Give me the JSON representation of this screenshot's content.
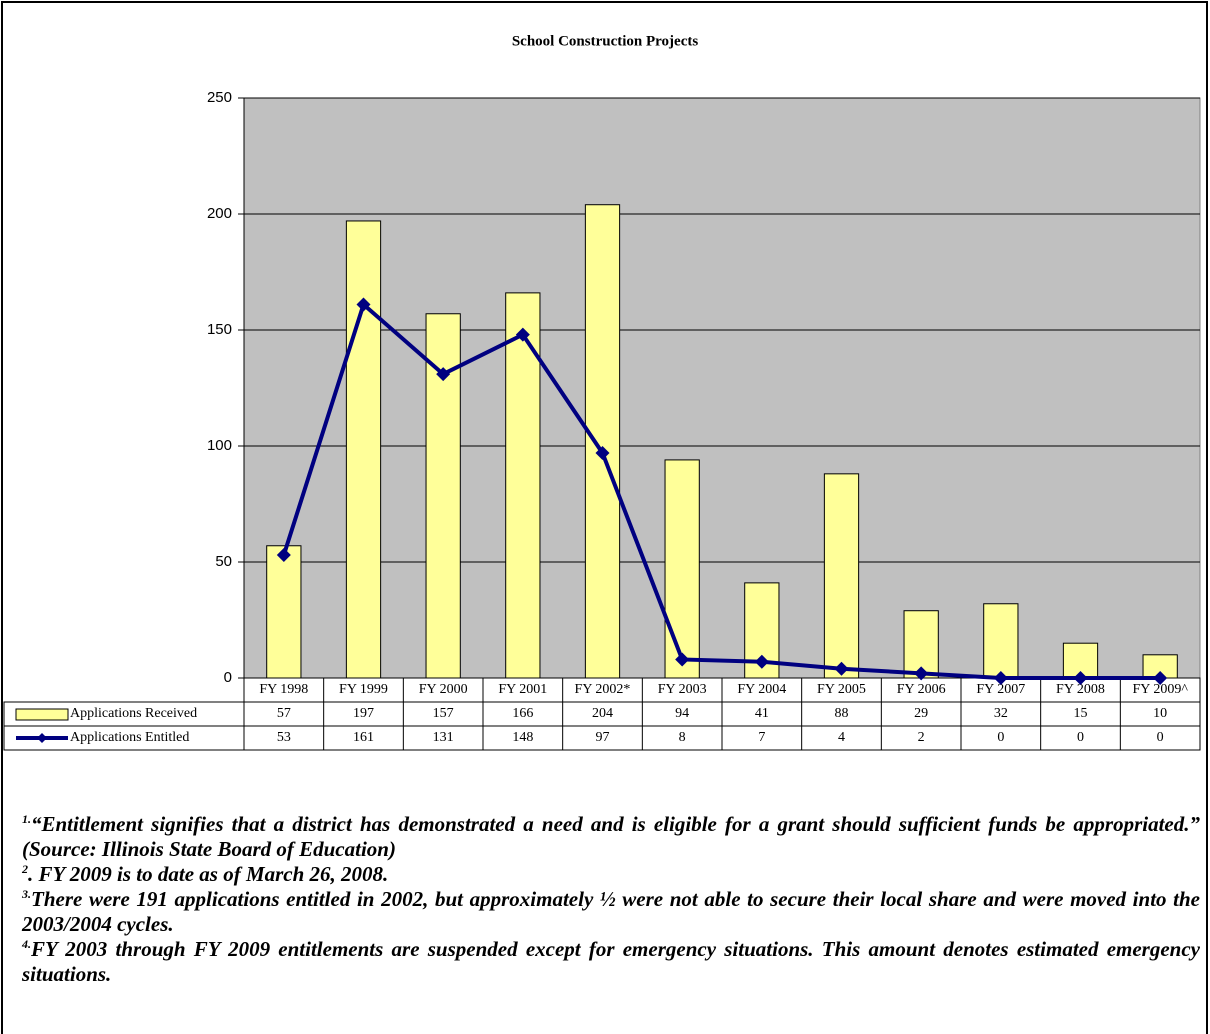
{
  "chart_data": {
    "type": "bar",
    "title": "School Construction Projects",
    "categories": [
      "FY 1998",
      "FY 1999",
      "FY 2000",
      "FY 2001",
      "FY 2002*",
      "FY 2003",
      "FY 2004",
      "FY 2005",
      "FY 2006",
      "FY 2007",
      "FY 2008",
      "FY 2009^"
    ],
    "series": [
      {
        "name": "Applications Received",
        "type": "bar",
        "color": "#ffff99",
        "values": [
          57,
          197,
          157,
          166,
          204,
          94,
          41,
          88,
          29,
          32,
          15,
          10
        ]
      },
      {
        "name": "Applications Entitled",
        "type": "line",
        "color": "#000080",
        "values": [
          53,
          161,
          131,
          148,
          97,
          8,
          7,
          4,
          2,
          0,
          0,
          0
        ]
      }
    ],
    "ylim": [
      0,
      250
    ],
    "yticks": [
      0,
      50,
      100,
      150,
      200,
      250
    ],
    "grid": true,
    "plot_background": "#c0c0c0",
    "legend": "data-table"
  },
  "footnotes": [
    {
      "mark": "1.",
      "text": "“Entitlement signifies that a district has demonstrated a need and is eligible for a grant should sufficient funds be appropriated.” (Source: Illinois State Board of Education)"
    },
    {
      "mark": "2",
      "text": ". FY 2009 is to date as of March 26, 2008."
    },
    {
      "mark": "3.",
      "text": "There were 191 applications entitled in 2002, but approximately ½ were not able to secure their local share and were moved into the 2003/2004 cycles."
    },
    {
      "mark": "4.",
      "text": "FY 2003 through FY 2009 entitlements are suspended except for emergency situations.  This amount denotes estimated emergency situations."
    }
  ]
}
